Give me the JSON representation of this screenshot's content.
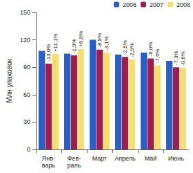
{
  "chart_data": {
    "type": "bar",
    "y_label": "Млн упаковок",
    "categories": [
      "Янв-\nварь",
      "Фев-\nраль",
      "Март",
      "Апрель",
      "Май",
      "Июнь"
    ],
    "series": [
      {
        "name": "2006",
        "color": "#2b5fc7",
        "values": [
          108,
          105,
          120,
          104,
          106,
          97
        ]
      },
      {
        "name": "2007",
        "color": "#9c1f4f",
        "values": [
          94,
          103,
          109.3,
          101.4,
          99.6,
          90
        ],
        "annotations": [
          "-13,0%",
          "-1,9%",
          "-8,9%",
          "-2,5%",
          "-6,0%",
          "-7,3%"
        ]
      },
      {
        "name": "2008",
        "color": "#f7dc6f",
        "values": [
          104.5,
          110,
          105.9,
          98.5,
          92.1,
          89.4
        ],
        "annotations": [
          "+11,1%",
          "+6,9%",
          "-3,1%",
          "-2,9%",
          "-7,5%",
          "-0,6%"
        ]
      }
    ],
    "ylim": [
      0,
      150
    ],
    "yticks": [
      0,
      30,
      60,
      90,
      120,
      150
    ],
    "grid": false,
    "legend": "top-right"
  }
}
